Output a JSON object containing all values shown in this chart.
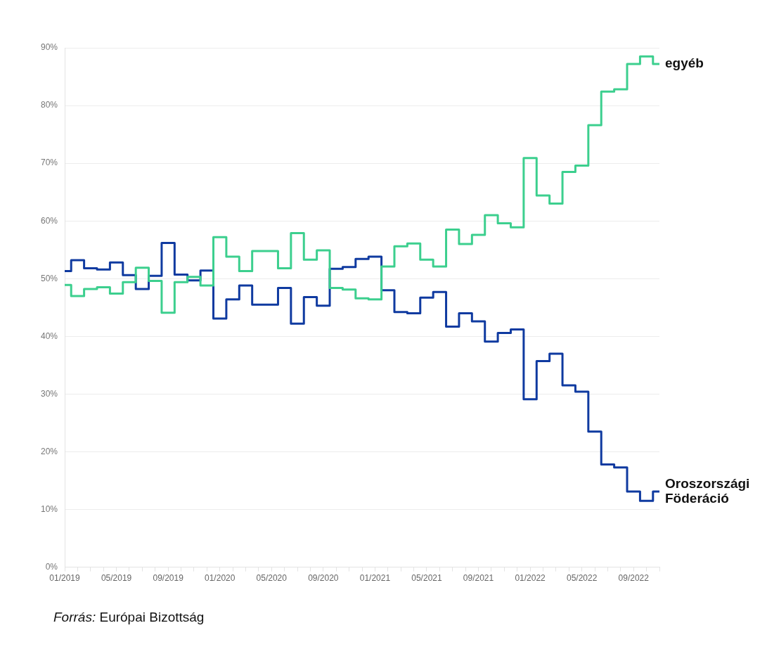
{
  "chart_data": {
    "type": "step",
    "categories": [
      "01/2019",
      null,
      null,
      null,
      "05/2019",
      null,
      null,
      null,
      "09/2019",
      null,
      null,
      null,
      "01/2020",
      null,
      null,
      null,
      "05/2020",
      null,
      null,
      null,
      "09/2020",
      null,
      null,
      null,
      "01/2021",
      null,
      null,
      null,
      "05/2021",
      null,
      null,
      null,
      "09/2021",
      null,
      null,
      null,
      "01/2022",
      null,
      null,
      null,
      "05/2022",
      null,
      null,
      null,
      "09/2022",
      null,
      null
    ],
    "series": [
      {
        "name": "egyéb",
        "color": "#3ccf8e",
        "values": [
          48.9,
          47.0,
          48.2,
          48.5,
          47.4,
          49.4,
          51.9,
          49.6,
          44.1,
          49.4,
          50.3,
          48.8,
          57.2,
          53.8,
          51.3,
          54.8,
          54.8,
          51.8,
          57.9,
          53.3,
          54.9,
          48.4,
          48.1,
          46.6,
          46.4,
          52.1,
          55.6,
          56.1,
          53.3,
          52.1,
          58.5,
          56.0,
          57.6,
          61.0,
          59.6,
          58.9,
          70.9,
          64.4,
          63.0,
          68.5,
          69.6,
          76.6,
          82.4,
          82.8,
          87.2,
          88.5,
          87.2
        ]
      },
      {
        "name": "Oroszországi Föderáció",
        "color": "#0f3aa0",
        "values": [
          51.3,
          53.2,
          51.8,
          51.6,
          52.8,
          50.6,
          48.2,
          50.5,
          56.2,
          50.7,
          49.7,
          51.4,
          43.1,
          46.4,
          48.8,
          45.5,
          45.5,
          48.4,
          42.2,
          46.8,
          45.3,
          51.7,
          52.0,
          53.4,
          53.8,
          48.0,
          44.2,
          44.0,
          46.7,
          47.7,
          41.7,
          44.0,
          42.6,
          39.1,
          40.6,
          41.2,
          29.1,
          35.7,
          37.0,
          31.5,
          30.4,
          23.5,
          17.8,
          17.3,
          13.1,
          11.5,
          13.1
        ]
      }
    ],
    "ylim": [
      0,
      90
    ],
    "yticks": [
      {
        "value": 0,
        "label": "0%"
      },
      {
        "value": 10,
        "label": "10%"
      },
      {
        "value": 20,
        "label": "20%"
      },
      {
        "value": 30,
        "label": "30%"
      },
      {
        "value": 40,
        "label": "40%"
      },
      {
        "value": 50,
        "label": "50%"
      },
      {
        "value": 60,
        "label": "60%"
      },
      {
        "value": 70,
        "label": "70%"
      },
      {
        "value": 80,
        "label": "80%"
      },
      {
        "value": 90,
        "label": "90%"
      }
    ],
    "grid": "y",
    "legend": false,
    "line_style": "solid",
    "marker": "none",
    "annotations": [
      "Forrás: Európai Bizottság"
    ]
  }
}
